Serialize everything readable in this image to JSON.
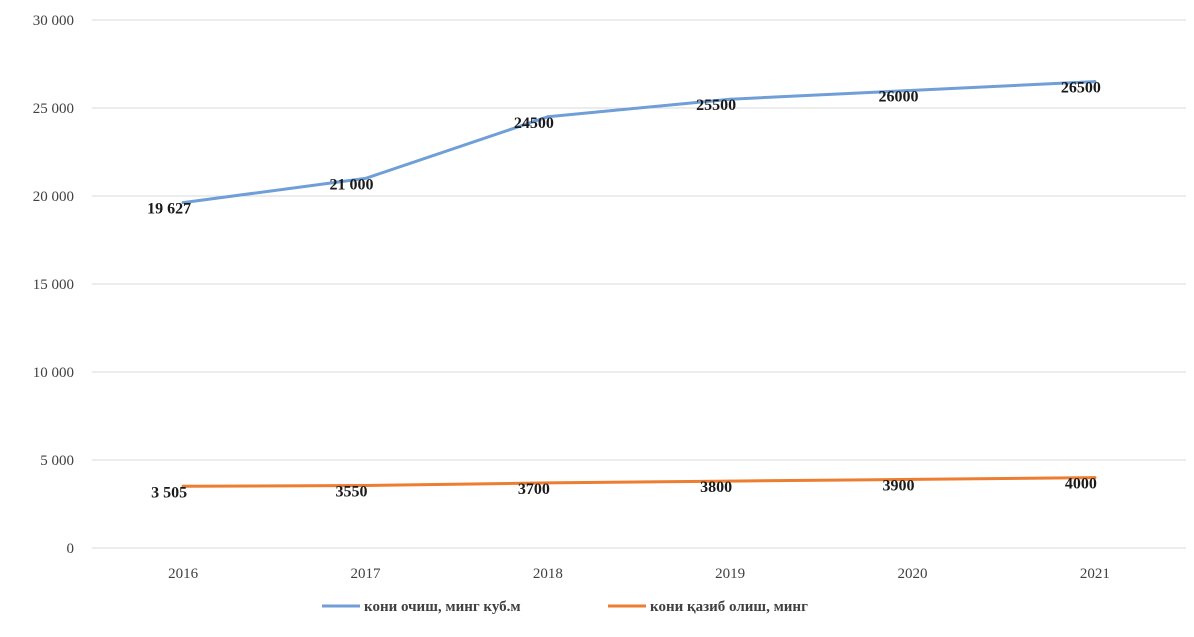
{
  "chart_data": {
    "type": "line",
    "title": "",
    "xlabel": "",
    "ylabel": "",
    "categories": [
      "2016",
      "2017",
      "2018",
      "2019",
      "2020",
      "2021"
    ],
    "ylim": [
      0,
      30000
    ],
    "yticks": [
      {
        "value": 0,
        "label": "0"
      },
      {
        "value": 5000,
        "label": "5 000"
      },
      {
        "value": 10000,
        "label": "10 000"
      },
      {
        "value": 15000,
        "label": "15 000"
      },
      {
        "value": 20000,
        "label": "20 000"
      },
      {
        "value": 25000,
        "label": "25 000"
      },
      {
        "value": 30000,
        "label": "30 000"
      }
    ],
    "grid": true,
    "legend_position": "bottom",
    "series": [
      {
        "name": "кони очиш, минг куб.м",
        "color": "#6f9fd6",
        "values": [
          19627,
          21000,
          24500,
          25500,
          26000,
          26500
        ],
        "labels": [
          "19 627",
          "21 000",
          "24500",
          "25500",
          "26000",
          "26500"
        ]
      },
      {
        "name": "кони қазиб олиш, минг",
        "color": "#ed7d31",
        "values": [
          3505,
          3550,
          3700,
          3800,
          3900,
          4000
        ],
        "labels": [
          "3 505",
          "3550",
          "3700",
          "3800",
          "3900",
          "4000"
        ]
      }
    ]
  }
}
